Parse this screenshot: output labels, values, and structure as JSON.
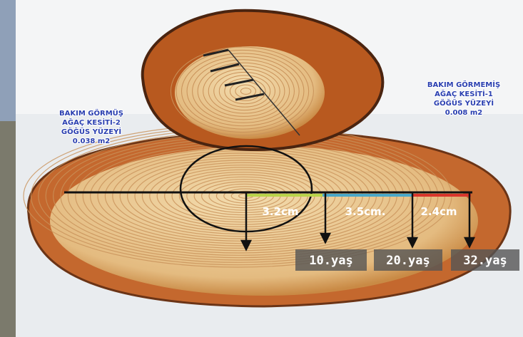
{
  "left_note": {
    "lines": [
      "BAKIM GÖRMÜŞ",
      "AĞAÇ KESİTİ-2",
      "GÖĞÜS YÜZEYİ",
      "0.038 m2"
    ]
  },
  "right_note": {
    "lines": [
      "BAKIM GÖRMEMİŞ",
      "AĞAÇ KESİTİ-1",
      "GÖĞÜS YÜZEYİ",
      "0.008 m2"
    ]
  },
  "measurements": [
    "3.2cm",
    "3.5cm.",
    "2.4cm"
  ],
  "ages": [
    "10.yaş",
    "20.yaş",
    "32.yaş"
  ]
}
